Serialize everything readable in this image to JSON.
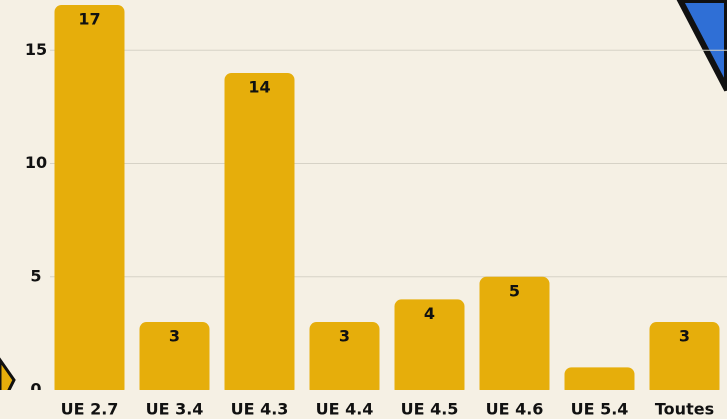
{
  "chart_data": {
    "type": "bar",
    "categories": [
      "UE 2.7",
      "UE 3.4",
      "UE 4.3",
      "UE 4.4",
      "UE 4.5",
      "UE 4.6",
      "UE 5.4",
      "Toutes"
    ],
    "values": [
      17,
      3,
      14,
      3,
      4,
      5,
      1,
      3
    ],
    "color": "#e6ae0b",
    "ylim": [
      0,
      17
    ],
    "yticks": [
      0,
      5,
      10,
      15
    ],
    "grid": true
  }
}
